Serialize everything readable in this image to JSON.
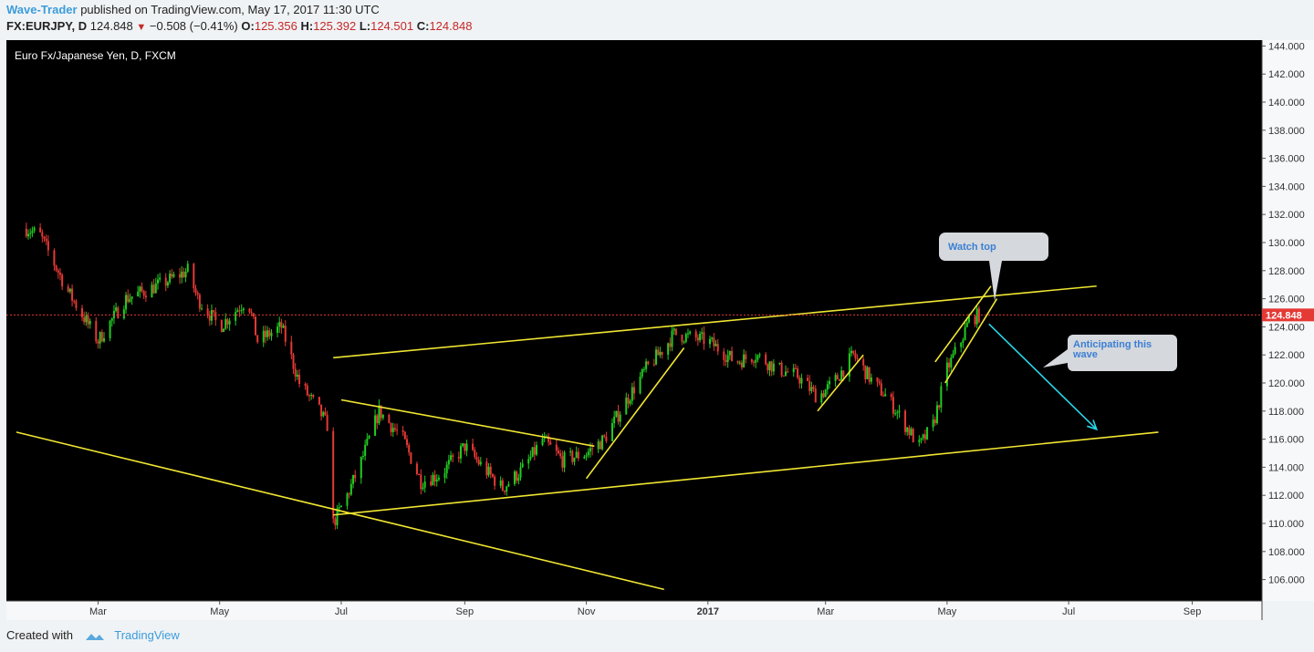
{
  "header": {
    "author": "Wave-Trader",
    "published": "published on TradingView.com, May 17, 2017 11:30 UTC",
    "symbol": "FX:EURJPY, D",
    "price": "124.848",
    "change": "−0.508 (−0.41%)",
    "o_label": "O:",
    "o_value": "125.356",
    "h_label": "H:",
    "h_value": "125.392",
    "l_label": "L:",
    "l_value": "124.501",
    "c_label": "C:",
    "c_value": "124.848"
  },
  "footer": {
    "created_with": "Created with",
    "brand": "TradingView"
  },
  "chart_data": {
    "type": "candlestick",
    "title": "Euro Fx/Japanese Yen, D, FXCM",
    "x_labels": [
      "Mar",
      "May",
      "Jul",
      "Sep",
      "Nov",
      "2017",
      "Mar",
      "May",
      "Jul",
      "Sep"
    ],
    "y_ticks": [
      "144.000",
      "142.000",
      "140.000",
      "138.000",
      "136.000",
      "134.000",
      "132.000",
      "130.000",
      "128.000",
      "126.000",
      "124.000",
      "122.000",
      "120.000",
      "118.000",
      "116.000",
      "114.000",
      "112.000",
      "110.000",
      "108.000",
      "106.000"
    ],
    "ylim": [
      105,
      145.5
    ],
    "last_price": "124.848",
    "colors": {
      "up": "#22cc22",
      "down": "#e53935",
      "trendline": "#f0e632",
      "arrow": "#29d6e8",
      "last_price": "#e53935"
    },
    "price_path": [
      [
        "2016-01-25",
        131
      ],
      [
        "2016-02-01",
        130.5
      ],
      [
        "2016-02-15",
        126.5
      ],
      [
        "2016-03-01",
        123
      ],
      [
        "2016-03-15",
        126
      ],
      [
        "2016-04-01",
        127
      ],
      [
        "2016-04-15",
        128
      ],
      [
        "2016-04-20",
        126
      ],
      [
        "2016-05-01",
        124
      ],
      [
        "2016-05-15",
        126
      ],
      [
        "2016-05-20",
        123
      ],
      [
        "2016-06-01",
        124
      ],
      [
        "2016-06-10",
        120
      ],
      [
        "2016-06-20",
        118
      ],
      [
        "2016-06-24",
        117
      ],
      [
        "2016-06-27",
        110
      ],
      [
        "2016-07-04",
        112
      ],
      [
        "2016-07-10",
        114
      ],
      [
        "2016-07-20",
        118
      ],
      [
        "2016-08-01",
        116
      ],
      [
        "2016-08-10",
        113
      ],
      [
        "2016-08-20",
        113.5
      ],
      [
        "2016-09-01",
        115.5
      ],
      [
        "2016-09-10",
        114
      ],
      [
        "2016-09-20",
        112.5
      ],
      [
        "2016-10-01",
        114
      ],
      [
        "2016-10-10",
        116
      ],
      [
        "2016-10-20",
        114.5
      ],
      [
        "2016-11-01",
        115
      ],
      [
        "2016-11-10",
        116
      ],
      [
        "2016-11-20",
        118.5
      ],
      [
        "2016-12-01",
        121
      ],
      [
        "2016-12-10",
        122.5
      ],
      [
        "2016-12-15",
        123.5
      ],
      [
        "2017-01-01",
        123
      ],
      [
        "2017-01-15",
        121.5
      ],
      [
        "2017-01-25",
        122
      ],
      [
        "2017-02-05",
        121
      ],
      [
        "2017-02-15",
        120.5
      ],
      [
        "2017-02-25",
        119
      ],
      [
        "2017-03-05",
        120
      ],
      [
        "2017-03-15",
        122
      ],
      [
        "2017-03-25",
        120
      ],
      [
        "2017-04-01",
        119
      ],
      [
        "2017-04-10",
        117
      ],
      [
        "2017-04-17",
        115.5
      ],
      [
        "2017-04-24",
        117
      ],
      [
        "2017-05-01",
        121
      ],
      [
        "2017-05-08",
        123
      ],
      [
        "2017-05-12",
        124.5
      ],
      [
        "2017-05-17",
        124.848
      ]
    ],
    "trendlines": [
      {
        "name": "channel-top",
        "from": [
          "2016-06-27",
          121.8
        ],
        "to": [
          "2017-07-15",
          126.9
        ]
      },
      {
        "name": "channel-bottom",
        "from": [
          "2016-06-27",
          110.6
        ],
        "to": [
          "2017-08-15",
          116.5
        ]
      },
      {
        "name": "long-downtrend",
        "from": [
          "2016-01-20",
          116.5
        ],
        "to": [
          "2016-12-10",
          105.3
        ]
      },
      {
        "name": "consolidation-top",
        "from": [
          "2016-07-01",
          118.8
        ],
        "to": [
          "2016-11-05",
          115.5
        ]
      },
      {
        "name": "rally-channel-1",
        "from": [
          "2016-11-01",
          113.2
        ],
        "to": [
          "2016-12-20",
          122.5
        ]
      },
      {
        "name": "rally-channel-2",
        "from": [
          "2017-02-25",
          118
        ],
        "to": [
          "2017-03-20",
          122
        ]
      },
      {
        "name": "final-channel-top",
        "from": [
          "2017-04-25",
          121.5
        ],
        "to": [
          "2017-05-23",
          126.9
        ]
      },
      {
        "name": "final-channel-bottom",
        "from": [
          "2017-04-30",
          120
        ],
        "to": [
          "2017-05-26",
          126
        ]
      }
    ],
    "projection_arrow": {
      "from": [
        "2017-05-22",
        124.2
      ],
      "to": [
        "2017-07-15",
        116.7
      ]
    },
    "callouts": [
      {
        "text": "Watch top"
      },
      {
        "text": "Anticipating this wave"
      }
    ]
  }
}
